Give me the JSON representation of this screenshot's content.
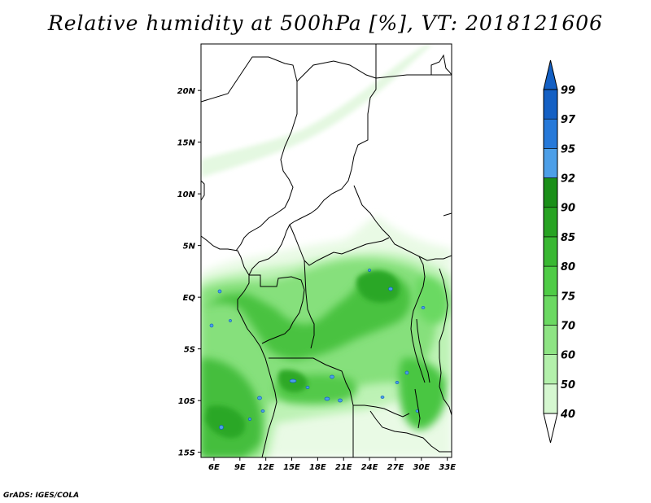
{
  "title": "Relative humidity at 500hPa [%], VT: 2018121606",
  "credit": "GrADS: IGES/COLA",
  "map": {
    "lon_range": [
      4.5,
      33.5
    ],
    "lat_range": [
      -15.5,
      24.5
    ],
    "x_ticks": [
      "6E",
      "9E",
      "12E",
      "15E",
      "18E",
      "21E",
      "24E",
      "27E",
      "30E",
      "33E"
    ],
    "x_tick_values": [
      6,
      9,
      12,
      15,
      18,
      21,
      24,
      27,
      30,
      33
    ],
    "y_ticks": [
      "15S",
      "10S",
      "5S",
      "EQ",
      "5N",
      "10N",
      "15N",
      "20N"
    ],
    "y_tick_values": [
      -15,
      -10,
      -5,
      0,
      5,
      10,
      15,
      20
    ]
  },
  "colorbar": {
    "levels": [
      "40",
      "50",
      "60",
      "70",
      "75",
      "80",
      "85",
      "90",
      "92",
      "95",
      "97",
      "99"
    ],
    "colors": [
      "#f0fcee",
      "#d5f7d0",
      "#b3f0ab",
      "#8ee484",
      "#6bd962",
      "#4fcc46",
      "#39b832",
      "#27a322",
      "#1a8f18",
      "#4d9fe8",
      "#2679d9",
      "#1460c4"
    ],
    "below_color": "#ffffff",
    "above_color": "#1460c4"
  }
}
